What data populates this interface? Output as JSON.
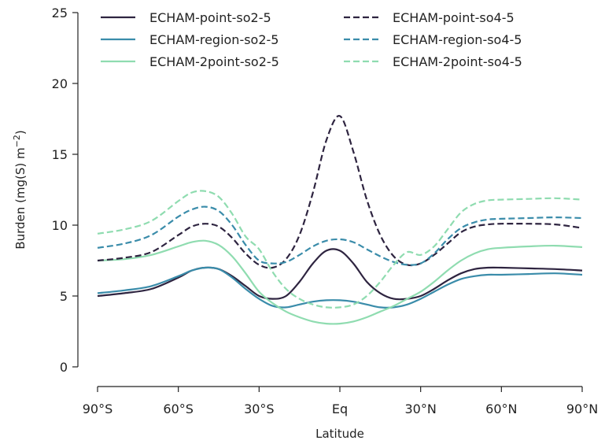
{
  "chart_data": {
    "type": "line",
    "xlabel": "Latitude",
    "ylabel": "Burden (mg(S) m",
    "ylabel_sup": "−2",
    "ylabel_end": ")",
    "xlim": [
      -90,
      90
    ],
    "ylim": [
      0,
      25
    ],
    "x_ticks": [
      -90,
      -60,
      -30,
      0,
      30,
      60,
      90
    ],
    "x_tick_labels": [
      "90°S",
      "60°S",
      "30°S",
      "Eq",
      "30°N",
      "60°N",
      "90°N"
    ],
    "y_ticks": [
      0,
      5,
      10,
      15,
      20,
      25
    ],
    "y_tick_labels": [
      "0",
      "5",
      "10",
      "15",
      "20",
      "25"
    ],
    "grid": false,
    "legend_position": "top",
    "series": [
      {
        "name": "ECHAM-point-so2-5",
        "color": "#2e2440",
        "dash": "solid",
        "x": [
          -90,
          -80,
          -70,
          -60,
          -55,
          -50,
          -45,
          -40,
          -35,
          -30,
          -25,
          -20,
          -15,
          -10,
          -5,
          0,
          5,
          10,
          15,
          20,
          25,
          30,
          35,
          40,
          45,
          50,
          55,
          60,
          70,
          80,
          90
        ],
        "y": [
          5.0,
          5.2,
          5.5,
          6.3,
          6.8,
          7.0,
          6.9,
          6.4,
          5.7,
          5.0,
          4.8,
          5.0,
          6.0,
          7.3,
          8.2,
          8.2,
          7.3,
          6.0,
          5.2,
          4.8,
          4.8,
          5.0,
          5.5,
          6.1,
          6.6,
          6.9,
          7.0,
          7.0,
          6.95,
          6.9,
          6.8
        ]
      },
      {
        "name": "ECHAM-region-so2-5",
        "color": "#3a8caa",
        "dash": "solid",
        "x": [
          -90,
          -80,
          -70,
          -60,
          -55,
          -50,
          -45,
          -40,
          -35,
          -30,
          -25,
          -20,
          -15,
          -10,
          -5,
          0,
          5,
          10,
          15,
          20,
          25,
          30,
          35,
          40,
          45,
          50,
          55,
          60,
          70,
          80,
          90
        ],
        "y": [
          5.2,
          5.4,
          5.7,
          6.4,
          6.8,
          7.0,
          6.9,
          6.3,
          5.5,
          4.8,
          4.3,
          4.2,
          4.4,
          4.6,
          4.7,
          4.7,
          4.6,
          4.4,
          4.2,
          4.2,
          4.4,
          4.8,
          5.3,
          5.8,
          6.2,
          6.4,
          6.5,
          6.5,
          6.55,
          6.6,
          6.5
        ]
      },
      {
        "name": "ECHAM-2point-so2-5",
        "color": "#8fdcb0",
        "dash": "solid",
        "x": [
          -90,
          -80,
          -70,
          -60,
          -55,
          -50,
          -45,
          -40,
          -35,
          -30,
          -25,
          -20,
          -15,
          -10,
          -5,
          0,
          5,
          10,
          15,
          20,
          25,
          30,
          35,
          40,
          45,
          50,
          55,
          60,
          70,
          80,
          90
        ],
        "y": [
          7.5,
          7.6,
          7.9,
          8.5,
          8.8,
          8.9,
          8.6,
          7.8,
          6.6,
          5.3,
          4.5,
          3.9,
          3.5,
          3.2,
          3.05,
          3.05,
          3.2,
          3.5,
          3.9,
          4.3,
          4.8,
          5.3,
          6.0,
          6.8,
          7.5,
          8.0,
          8.3,
          8.4,
          8.5,
          8.55,
          8.45
        ]
      },
      {
        "name": "ECHAM-point-so4-5",
        "color": "#2e2440",
        "dash": "dashed",
        "x": [
          -90,
          -80,
          -70,
          -60,
          -55,
          -50,
          -45,
          -40,
          -35,
          -30,
          -25,
          -20,
          -15,
          -10,
          -5,
          0,
          5,
          10,
          15,
          20,
          25,
          30,
          35,
          40,
          45,
          50,
          55,
          60,
          70,
          80,
          90
        ],
        "y": [
          7.5,
          7.7,
          8.1,
          9.3,
          9.9,
          10.1,
          9.9,
          9.1,
          8.0,
          7.2,
          7.0,
          7.6,
          9.3,
          12.3,
          16.0,
          17.7,
          15.2,
          11.8,
          9.3,
          7.8,
          7.2,
          7.3,
          7.9,
          8.7,
          9.5,
          9.9,
          10.05,
          10.1,
          10.1,
          10.05,
          9.8
        ]
      },
      {
        "name": "ECHAM-region-so4-5",
        "color": "#3a8caa",
        "dash": "dashed",
        "x": [
          -90,
          -80,
          -70,
          -60,
          -55,
          -50,
          -45,
          -40,
          -35,
          -30,
          -25,
          -20,
          -15,
          -10,
          -5,
          0,
          5,
          10,
          15,
          20,
          25,
          30,
          35,
          40,
          45,
          50,
          55,
          60,
          70,
          80,
          90
        ],
        "y": [
          8.4,
          8.7,
          9.3,
          10.6,
          11.1,
          11.3,
          11.0,
          10.0,
          8.6,
          7.5,
          7.3,
          7.4,
          7.9,
          8.5,
          8.9,
          9.0,
          8.8,
          8.3,
          7.8,
          7.4,
          7.2,
          7.3,
          8.0,
          9.0,
          9.8,
          10.2,
          10.4,
          10.45,
          10.5,
          10.55,
          10.5
        ]
      },
      {
        "name": "ECHAM-2point-so4-5",
        "color": "#8fdcb0",
        "dash": "dashed",
        "x": [
          -90,
          -80,
          -70,
          -60,
          -55,
          -50,
          -45,
          -40,
          -35,
          -30,
          -25,
          -20,
          -15,
          -10,
          -5,
          0,
          5,
          10,
          15,
          20,
          25,
          30,
          35,
          40,
          45,
          50,
          55,
          60,
          70,
          80,
          90
        ],
        "y": [
          9.4,
          9.7,
          10.3,
          11.7,
          12.3,
          12.4,
          12.0,
          10.8,
          9.2,
          8.3,
          6.7,
          5.5,
          4.8,
          4.4,
          4.2,
          4.2,
          4.4,
          5.0,
          6.0,
          7.2,
          8.1,
          7.9,
          8.5,
          9.7,
          10.9,
          11.5,
          11.75,
          11.8,
          11.85,
          11.9,
          11.8
        ]
      }
    ]
  }
}
